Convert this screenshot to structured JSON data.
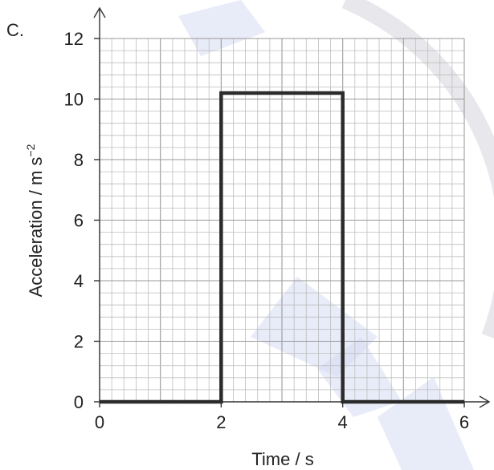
{
  "option_label": "C.",
  "chart_data": {
    "type": "line",
    "xlabel": "Time / s",
    "ylabel": "Acceleration / m s",
    "ylabel_superscript": "−2",
    "xlim": [
      0,
      6
    ],
    "ylim": [
      0,
      12
    ],
    "x_ticks": [
      0,
      2,
      4,
      6
    ],
    "y_ticks": [
      0,
      2,
      4,
      6,
      8,
      10,
      12
    ],
    "grid": true,
    "series": [
      {
        "x": [
          0,
          2,
          2,
          4,
          4,
          6
        ],
        "y": [
          0,
          0,
          10.2,
          10.2,
          0,
          0
        ]
      }
    ],
    "colors": {
      "line": "#2b2b2b",
      "grid_minor": "#bdbdbd",
      "grid_major": "#9a9a9a"
    }
  }
}
